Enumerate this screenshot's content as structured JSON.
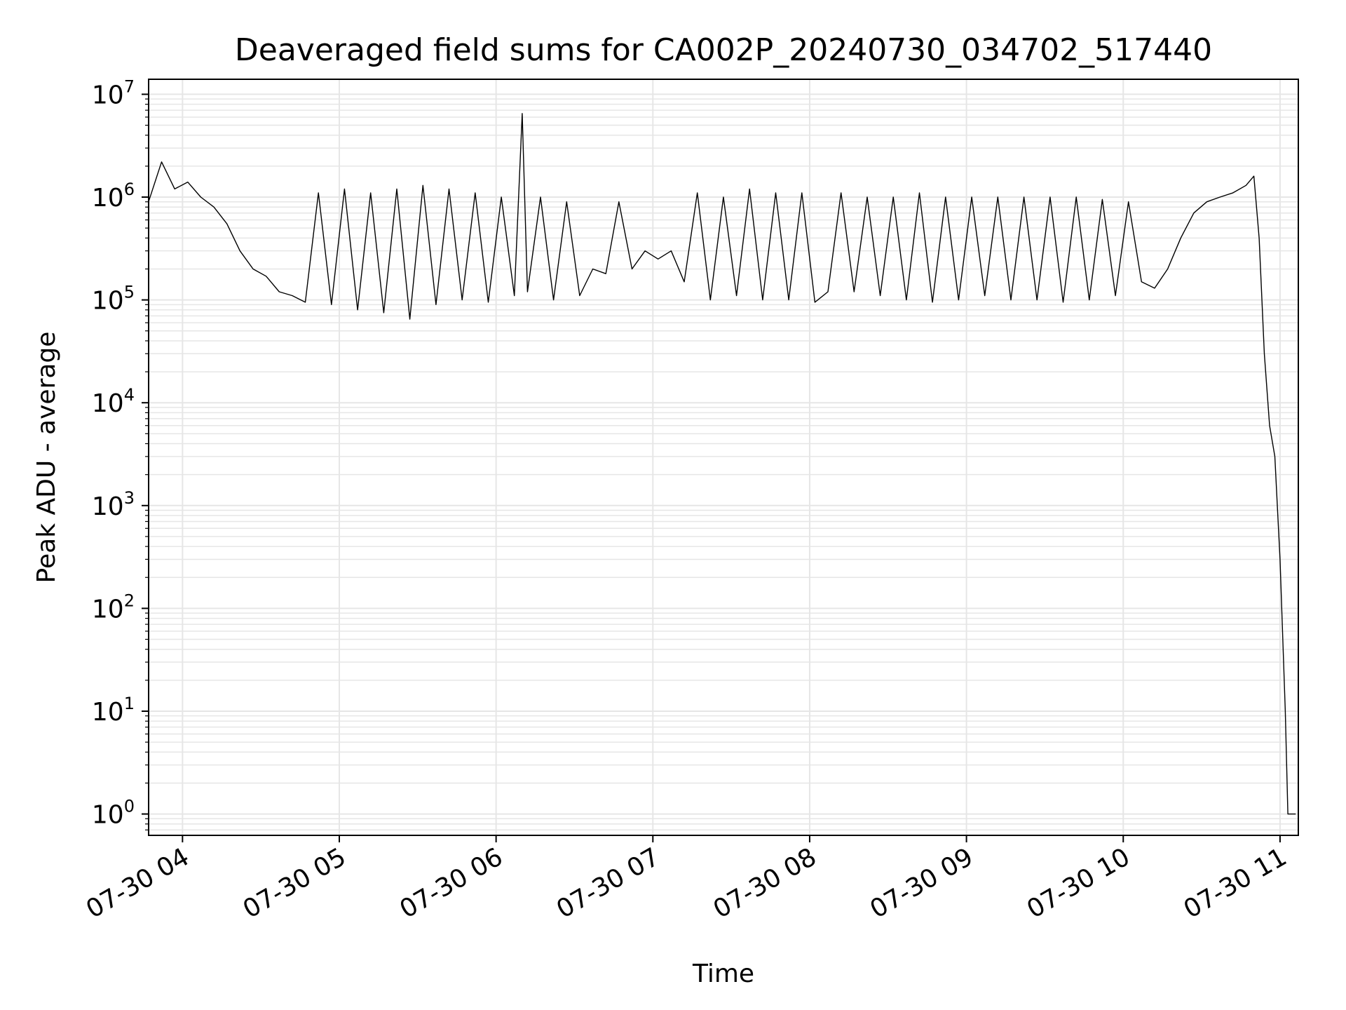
{
  "chart_data": {
    "type": "line",
    "title": "Deaveraged field sums for CA002P_20240730_034702_517440",
    "xlabel": "Time",
    "ylabel": "Peak ADU - average",
    "yscale": "log",
    "ylim": [
      0.62,
      14000000
    ],
    "xlim": [
      "2024-07-30 03:47:02",
      "2024-07-30 11:07:00"
    ],
    "grid": true,
    "line_color": "#000000",
    "grid_color": "#e6e6e6",
    "x_tick_labels": [
      "07-30 04",
      "07-30 05",
      "07-30 06",
      "07-30 07",
      "07-30 08",
      "07-30 09",
      "07-30 10",
      "07-30 11"
    ],
    "x_ticks": [
      "2024-07-30 04:00",
      "2024-07-30 05:00",
      "2024-07-30 06:00",
      "2024-07-30 07:00",
      "2024-07-30 08:00",
      "2024-07-30 09:00",
      "2024-07-30 10:00",
      "2024-07-30 11:00"
    ],
    "y_ticks": [
      {
        "value": 1,
        "base": "10",
        "exp": "0"
      },
      {
        "value": 10,
        "base": "10",
        "exp": "1"
      },
      {
        "value": 100,
        "base": "10",
        "exp": "2"
      },
      {
        "value": 1000,
        "base": "10",
        "exp": "3"
      },
      {
        "value": 10000,
        "base": "10",
        "exp": "4"
      },
      {
        "value": 100000,
        "base": "10",
        "exp": "5"
      },
      {
        "value": 1000000,
        "base": "10",
        "exp": "6"
      },
      {
        "value": 10000000,
        "base": "10",
        "exp": "7"
      }
    ],
    "series": [
      {
        "x": [
          "2024-07-30 03:47",
          "2024-07-30 03:52",
          "2024-07-30 03:57",
          "2024-07-30 04:02",
          "2024-07-30 04:07",
          "2024-07-30 04:12",
          "2024-07-30 04:17",
          "2024-07-30 04:22",
          "2024-07-30 04:27",
          "2024-07-30 04:32",
          "2024-07-30 04:37",
          "2024-07-30 04:42",
          "2024-07-30 04:47",
          "2024-07-30 04:52",
          "2024-07-30 04:57",
          "2024-07-30 05:02",
          "2024-07-30 05:07",
          "2024-07-30 05:12",
          "2024-07-30 05:17",
          "2024-07-30 05:22",
          "2024-07-30 05:27",
          "2024-07-30 05:32",
          "2024-07-30 05:37",
          "2024-07-30 05:42",
          "2024-07-30 05:47",
          "2024-07-30 05:52",
          "2024-07-30 05:57",
          "2024-07-30 06:02",
          "2024-07-30 06:07",
          "2024-07-30 06:10",
          "2024-07-30 06:12",
          "2024-07-30 06:17",
          "2024-07-30 06:22",
          "2024-07-30 06:27",
          "2024-07-30 06:32",
          "2024-07-30 06:37",
          "2024-07-30 06:42",
          "2024-07-30 06:47",
          "2024-07-30 06:52",
          "2024-07-30 06:57",
          "2024-07-30 07:02",
          "2024-07-30 07:07",
          "2024-07-30 07:12",
          "2024-07-30 07:17",
          "2024-07-30 07:22",
          "2024-07-30 07:27",
          "2024-07-30 07:32",
          "2024-07-30 07:37",
          "2024-07-30 07:42",
          "2024-07-30 07:47",
          "2024-07-30 07:52",
          "2024-07-30 07:57",
          "2024-07-30 08:02",
          "2024-07-30 08:07",
          "2024-07-30 08:12",
          "2024-07-30 08:17",
          "2024-07-30 08:22",
          "2024-07-30 08:27",
          "2024-07-30 08:32",
          "2024-07-30 08:37",
          "2024-07-30 08:42",
          "2024-07-30 08:47",
          "2024-07-30 08:52",
          "2024-07-30 08:57",
          "2024-07-30 09:02",
          "2024-07-30 09:07",
          "2024-07-30 09:12",
          "2024-07-30 09:17",
          "2024-07-30 09:22",
          "2024-07-30 09:27",
          "2024-07-30 09:32",
          "2024-07-30 09:37",
          "2024-07-30 09:42",
          "2024-07-30 09:47",
          "2024-07-30 09:52",
          "2024-07-30 09:57",
          "2024-07-30 10:02",
          "2024-07-30 10:07",
          "2024-07-30 10:12",
          "2024-07-30 10:17",
          "2024-07-30 10:22",
          "2024-07-30 10:27",
          "2024-07-30 10:32",
          "2024-07-30 10:37",
          "2024-07-30 10:42",
          "2024-07-30 10:47",
          "2024-07-30 10:50",
          "2024-07-30 10:52",
          "2024-07-30 10:54",
          "2024-07-30 10:56",
          "2024-07-30 10:58",
          "2024-07-30 11:00",
          "2024-07-30 11:02",
          "2024-07-30 11:03",
          "2024-07-30 11:04",
          "2024-07-30 11:05",
          "2024-07-30 11:06"
        ],
        "y": [
          900000,
          2200000,
          1200000,
          1400000,
          1000000,
          800000,
          550000,
          300000,
          200000,
          170000,
          120000,
          110000,
          95000,
          1100000,
          90000,
          1200000,
          80000,
          1100000,
          75000,
          1200000,
          65000,
          1300000,
          90000,
          1200000,
          100000,
          1100000,
          95000,
          1000000,
          110000,
          6500000,
          120000,
          1000000,
          100000,
          900000,
          110000,
          200000,
          180000,
          900000,
          200000,
          300000,
          250000,
          300000,
          150000,
          1100000,
          100000,
          1000000,
          110000,
          1200000,
          100000,
          1100000,
          100000,
          1100000,
          95000,
          120000,
          1100000,
          120000,
          1000000,
          110000,
          1000000,
          100000,
          1100000,
          95000,
          1000000,
          100000,
          1000000,
          110000,
          1000000,
          100000,
          1000000,
          100000,
          1000000,
          95000,
          1000000,
          100000,
          950000,
          110000,
          900000,
          150000,
          130000,
          200000,
          400000,
          700000,
          900000,
          1000000,
          1100000,
          1300000,
          1600000,
          400000,
          30000,
          6000,
          3000,
          300,
          10,
          1,
          1,
          1,
          1
        ]
      }
    ]
  }
}
